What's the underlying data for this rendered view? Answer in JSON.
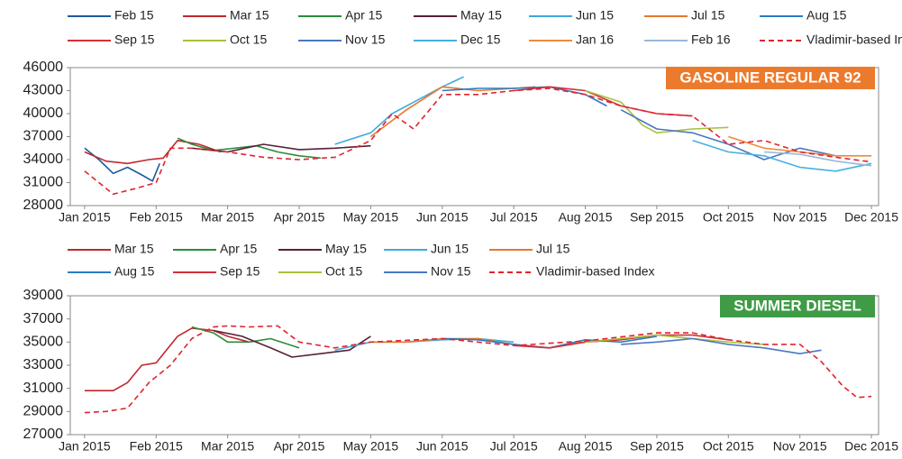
{
  "chart_data": [
    {
      "type": "line",
      "badge": "GASOLINE REGULAR 92",
      "badge_color": "#ec7a2d",
      "xlim": [
        -0.2,
        11.1
      ],
      "ylim": [
        28000,
        46000
      ],
      "yticks": [
        28000,
        31000,
        34000,
        37000,
        40000,
        43000,
        46000
      ],
      "xticks": [
        {
          "value": 0,
          "label": "Jan 2015"
        },
        {
          "value": 1,
          "label": "Feb 2015"
        },
        {
          "value": 2,
          "label": "Mar 2015"
        },
        {
          "value": 3,
          "label": "Apr 2015"
        },
        {
          "value": 4,
          "label": "May 2015"
        },
        {
          "value": 5,
          "label": "Jun 2015"
        },
        {
          "value": 6,
          "label": "Jul 2015"
        },
        {
          "value": 7,
          "label": "Aug 2015"
        },
        {
          "value": 8,
          "label": "Sep 2015"
        },
        {
          "value": 9,
          "label": "Oct 2015"
        },
        {
          "value": 10,
          "label": "Nov 2015"
        },
        {
          "value": 11,
          "label": "Dec 2015"
        }
      ],
      "series": [
        {
          "name": "Feb 15",
          "color": "#1f5b99",
          "x": [
            0,
            0.2,
            0.4,
            0.6,
            0.8,
            0.95,
            1.05
          ],
          "values": [
            35500,
            34000,
            32200,
            33000,
            32000,
            31200,
            33500
          ]
        },
        {
          "name": "Mar 15",
          "color": "#c0282d",
          "x": [
            0,
            0.3,
            0.6,
            0.9,
            1.1,
            1.3,
            1.6,
            1.9
          ],
          "values": [
            35000,
            33800,
            33500,
            34000,
            34200,
            36500,
            36000,
            35000
          ]
        },
        {
          "name": "Apr 15",
          "color": "#2e8b3a",
          "x": [
            1.3,
            1.5,
            1.8,
            2.1,
            2.4,
            2.7,
            3.0,
            3.3
          ],
          "values": [
            36800,
            36000,
            35200,
            35500,
            35800,
            35000,
            34500,
            34200
          ]
        },
        {
          "name": "May 15",
          "color": "#5a1f3b",
          "x": [
            1.5,
            2,
            2.5,
            3,
            3.5,
            4.0
          ],
          "values": [
            35500,
            35000,
            36000,
            35300,
            35500,
            35800
          ]
        },
        {
          "name": "Jun 15",
          "color": "#3fa9dd",
          "x": [
            3.5,
            4,
            4.3,
            4.6,
            5,
            5.3
          ],
          "values": [
            36000,
            37500,
            40000,
            41500,
            43500,
            44800
          ]
        },
        {
          "name": "Jul 15",
          "color": "#e8772e",
          "x": [
            4,
            4.5,
            5,
            5.5,
            6,
            6.3
          ],
          "values": [
            37000,
            40500,
            43500,
            43000,
            43300,
            43500
          ]
        },
        {
          "name": "Aug 15",
          "color": "#2b7cc0",
          "x": [
            5,
            5.5,
            6,
            6.5,
            7,
            7.3
          ],
          "values": [
            43000,
            43300,
            43300,
            43500,
            42500,
            41000
          ]
        },
        {
          "name": "Sep 15",
          "color": "#d4303a",
          "x": [
            6,
            6.5,
            7,
            7.5,
            8,
            8.5
          ],
          "values": [
            43000,
            43500,
            43000,
            41000,
            40000,
            39700
          ]
        },
        {
          "name": "Oct 15",
          "color": "#a8c23a",
          "x": [
            7,
            7.5,
            7.8,
            8,
            8.5,
            9
          ],
          "values": [
            43000,
            41500,
            38500,
            37500,
            38000,
            38200
          ]
        },
        {
          "name": "Nov 15",
          "color": "#4a78c0",
          "x": [
            7.5,
            8,
            8.5,
            9,
            9.5,
            10,
            10.5
          ],
          "values": [
            40500,
            38000,
            37500,
            36000,
            34000,
            35500,
            34500
          ]
        },
        {
          "name": "Dec 15",
          "color": "#45b0e0",
          "x": [
            8.5,
            9,
            9.5,
            10,
            10.5,
            11
          ],
          "values": [
            36500,
            35000,
            34500,
            33000,
            32500,
            33500
          ]
        },
        {
          "name": "Jan 16",
          "color": "#ee8a3a",
          "x": [
            9,
            9.5,
            10,
            10.5,
            11
          ],
          "values": [
            37000,
            35500,
            35000,
            34500,
            34500
          ]
        },
        {
          "name": "Feb 16",
          "color": "#9ab7d8",
          "x": [
            9.5,
            10,
            10.5,
            11
          ],
          "values": [
            35000,
            34700,
            33800,
            33200
          ]
        },
        {
          "name": "Vladimir-based Index",
          "color": "#e0242f",
          "dashed": true,
          "x": [
            0,
            0.2,
            0.4,
            0.7,
            1,
            1.2,
            1.5,
            2,
            2.5,
            3,
            3.5,
            4,
            4.3,
            4.6,
            5,
            5.5,
            6,
            6.5,
            7,
            7.5,
            8,
            8.5,
            9,
            9.5,
            10,
            10.5,
            11
          ],
          "values": [
            32500,
            31000,
            29500,
            30200,
            31000,
            35500,
            35500,
            35000,
            34300,
            34000,
            34300,
            36500,
            40000,
            38000,
            42500,
            42500,
            43000,
            43300,
            42500,
            41000,
            40000,
            39700,
            36000,
            36500,
            35000,
            34300,
            33700
          ]
        }
      ]
    },
    {
      "type": "line",
      "badge": "SUMMER DIESEL",
      "badge_color": "#3f9b46",
      "xlim": [
        -0.2,
        11.1
      ],
      "ylim": [
        27000,
        39000
      ],
      "yticks": [
        27000,
        29000,
        31000,
        33000,
        35000,
        37000,
        39000
      ],
      "xticks": [
        {
          "value": 0,
          "label": "Jan 2015"
        },
        {
          "value": 1,
          "label": "Feb 2015"
        },
        {
          "value": 2,
          "label": "Mar 2015"
        },
        {
          "value": 3,
          "label": "Apr 2015"
        },
        {
          "value": 4,
          "label": "May 2015"
        },
        {
          "value": 5,
          "label": "Jun 2015"
        },
        {
          "value": 6,
          "label": "Jul 2015"
        },
        {
          "value": 7,
          "label": "Aug 2015"
        },
        {
          "value": 8,
          "label": "Sep 2015"
        },
        {
          "value": 9,
          "label": "Oct 2015"
        },
        {
          "value": 10,
          "label": "Nov 2015"
        },
        {
          "value": 11,
          "label": "Dec 2015"
        }
      ],
      "series": [
        {
          "name": "Mar 15",
          "color": "#c0282d",
          "x": [
            0,
            0.4,
            0.6,
            0.8,
            1,
            1.3,
            1.5,
            1.8,
            2,
            2.3
          ],
          "values": [
            30800,
            30800,
            31500,
            33000,
            33200,
            35500,
            36200,
            36000,
            35500,
            35000
          ]
        },
        {
          "name": "Apr 15",
          "color": "#2e8b3a",
          "x": [
            1.5,
            1.8,
            2,
            2.3,
            2.6,
            3
          ],
          "values": [
            36300,
            35800,
            35000,
            35000,
            35300,
            34500
          ]
        },
        {
          "name": "May 15",
          "color": "#5a1f3b",
          "x": [
            1.8,
            2.2,
            2.6,
            2.9,
            3.3,
            3.7,
            4
          ],
          "values": [
            36000,
            35500,
            34500,
            33700,
            34000,
            34300,
            35500
          ]
        },
        {
          "name": "Jun 15",
          "color": "#3fa9dd",
          "x": [
            3.5,
            4,
            4.5,
            5,
            5.5,
            6
          ],
          "values": [
            34300,
            35000,
            35000,
            35200,
            35300,
            35000
          ]
        },
        {
          "name": "Jul 15",
          "color": "#e8772e",
          "x": [
            4,
            4.5,
            5,
            5.5,
            6,
            6.5,
            7
          ],
          "values": [
            35000,
            35000,
            35300,
            35300,
            34800,
            34500,
            35000
          ]
        },
        {
          "name": "Aug 15",
          "color": "#2b7cc0",
          "x": [
            5,
            5.5,
            6,
            6.5,
            7,
            7.5,
            8
          ],
          "values": [
            35300,
            35200,
            34800,
            34500,
            35200,
            35000,
            35500
          ]
        },
        {
          "name": "Sep 15",
          "color": "#d4303a",
          "x": [
            6,
            6.5,
            7,
            7.5,
            8,
            8.5,
            9
          ],
          "values": [
            34700,
            34500,
            35000,
            35200,
            35600,
            35600,
            35200
          ]
        },
        {
          "name": "Oct 15",
          "color": "#a8c23a",
          "x": [
            7,
            7.5,
            8,
            8.5,
            9,
            9.5
          ],
          "values": [
            35000,
            35300,
            35600,
            35300,
            35000,
            34800
          ]
        },
        {
          "name": "Nov 15",
          "color": "#4a78c0",
          "x": [
            7.5,
            8,
            8.5,
            9,
            9.5,
            10,
            10.3
          ],
          "values": [
            34800,
            35000,
            35300,
            34800,
            34500,
            34000,
            34300
          ]
        },
        {
          "name": "Vladimir-based Index",
          "color": "#e0242f",
          "dashed": true,
          "x": [
            0,
            0.3,
            0.6,
            0.9,
            1.2,
            1.5,
            1.8,
            2,
            2.3,
            2.7,
            3,
            3.5,
            4,
            5,
            6,
            7,
            8,
            8.5,
            9,
            9.5,
            10,
            10.3,
            10.6,
            10.8,
            11
          ],
          "values": [
            28900,
            29000,
            29300,
            31500,
            33000,
            35300,
            36300,
            36400,
            36300,
            36400,
            35000,
            34500,
            35000,
            35300,
            34700,
            35100,
            35800,
            35800,
            35200,
            34800,
            34800,
            33300,
            31200,
            30200,
            30300
          ]
        }
      ]
    }
  ]
}
